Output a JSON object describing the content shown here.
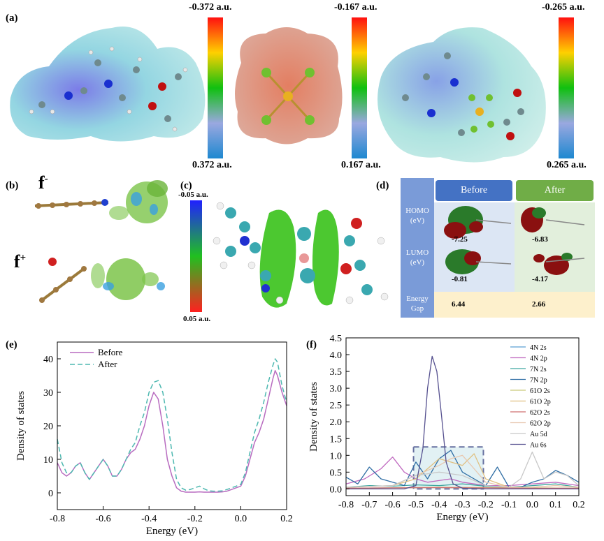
{
  "panel_labels": {
    "a": "(a)",
    "b": "(b)",
    "c": "(c)",
    "d": "(d)",
    "e": "(e)",
    "f": "(f)"
  },
  "panel_a": {
    "colorbars": [
      {
        "top": "-0.372 a.u.",
        "bottom": "0.372 a.u."
      },
      {
        "top": "-0.167 a.u.",
        "bottom": "0.167 a.u."
      },
      {
        "top": "-0.265 a.u.",
        "bottom": "0.265 a.u."
      }
    ]
  },
  "panel_b": {
    "f_minus": "f",
    "minus_sup": "-",
    "f_plus": "f",
    "plus_sup": "+"
  },
  "panel_c": {
    "colorbar_top": "-0.05 a.u.",
    "colorbar_bottom": "0.05 a.u."
  },
  "panel_d": {
    "col_before": "Before",
    "col_after": "After",
    "row_homo": "HOMO",
    "row_homo_unit": "(eV)",
    "row_lumo": "LUMO",
    "row_lumo_unit": "(eV)",
    "row_gap": "Energy",
    "row_gap2": "Gap",
    "homo_before": "-7.25",
    "homo_after": "-6.83",
    "lumo_before": "-0.81",
    "lumo_after": "-4.17",
    "gap_before": "6.44",
    "gap_after": "2.66"
  },
  "chart_data": [
    {
      "type": "line",
      "xlabel": "Energy (eV)",
      "ylabel": "Density of states",
      "xlim": [
        -0.8,
        0.2
      ],
      "ylim": [
        -5,
        45
      ],
      "xticks": [
        "-0.8",
        "-0.6",
        "-0.4",
        "-0.2",
        "0.0",
        "0.2"
      ],
      "yticks": [
        "0",
        "10",
        "20",
        "30",
        "40"
      ],
      "legend_position": "top-left",
      "series": [
        {
          "name": "Before",
          "color": "#b86cc0",
          "dash": "solid",
          "x": [
            -0.8,
            -0.78,
            -0.76,
            -0.74,
            -0.72,
            -0.7,
            -0.68,
            -0.66,
            -0.64,
            -0.62,
            -0.6,
            -0.58,
            -0.56,
            -0.54,
            -0.52,
            -0.5,
            -0.48,
            -0.46,
            -0.44,
            -0.42,
            -0.4,
            -0.38,
            -0.36,
            -0.34,
            -0.32,
            -0.3,
            -0.28,
            -0.26,
            -0.24,
            -0.22,
            -0.2,
            -0.18,
            -0.16,
            -0.14,
            -0.12,
            -0.1,
            -0.08,
            -0.06,
            -0.04,
            -0.02,
            0.0,
            0.02,
            0.04,
            0.06,
            0.08,
            0.1,
            0.12,
            0.14,
            0.15,
            0.16,
            0.18,
            0.2
          ],
          "y": [
            9,
            6,
            5,
            6,
            8,
            9,
            6,
            4,
            6,
            8,
            10,
            8,
            5,
            5,
            7,
            10,
            12,
            13,
            16,
            20,
            26,
            30,
            28,
            20,
            10,
            5,
            1.5,
            0.5,
            0.2,
            0.2,
            0.2,
            0.3,
            0.2,
            0.2,
            0.2,
            0.2,
            0.3,
            0.5,
            1,
            1.5,
            2,
            5,
            10,
            15,
            18,
            22,
            28,
            34,
            36.5,
            35,
            30,
            26
          ]
        },
        {
          "name": "After",
          "color": "#4db8b0",
          "dash": "dashed",
          "x": [
            -0.8,
            -0.78,
            -0.76,
            -0.74,
            -0.72,
            -0.7,
            -0.68,
            -0.66,
            -0.64,
            -0.62,
            -0.6,
            -0.58,
            -0.56,
            -0.54,
            -0.52,
            -0.5,
            -0.48,
            -0.46,
            -0.44,
            -0.42,
            -0.4,
            -0.38,
            -0.36,
            -0.34,
            -0.32,
            -0.3,
            -0.28,
            -0.26,
            -0.24,
            -0.22,
            -0.2,
            -0.18,
            -0.16,
            -0.14,
            -0.12,
            -0.1,
            -0.08,
            -0.06,
            -0.04,
            -0.02,
            0.0,
            0.02,
            0.04,
            0.06,
            0.08,
            0.1,
            0.12,
            0.14,
            0.15,
            0.16,
            0.18,
            0.2
          ],
          "y": [
            16,
            9,
            6,
            6,
            8,
            9,
            6,
            4,
            6,
            8,
            10,
            8,
            5,
            5,
            7,
            10,
            13,
            15,
            20,
            24,
            30,
            33,
            33.5,
            30,
            22,
            12,
            4,
            1.5,
            0.8,
            1,
            1.5,
            2,
            1.2,
            0.6,
            0.5,
            0.5,
            0.6,
            1,
            1.5,
            2,
            2.5,
            6,
            12,
            18,
            22,
            27,
            33,
            38,
            40,
            39,
            32,
            27
          ]
        }
      ]
    },
    {
      "type": "line",
      "xlabel": "Energy (eV)",
      "ylabel": "Density of states",
      "xlim": [
        -0.8,
        0.2
      ],
      "ylim": [
        -0.2,
        4.5
      ],
      "xticks": [
        "-0.8",
        "-0.7",
        "-0.6",
        "-0.5",
        "-0.4",
        "-0.3",
        "-0.2",
        "-0.1",
        "0.0",
        "0.1",
        "0.2"
      ],
      "yticks": [
        "0.0",
        "0.5",
        "1.0",
        "1.5",
        "2.0",
        "2.5",
        "3.0",
        "3.5",
        "4.0",
        "4.5"
      ],
      "legend_position": "top-right",
      "highlight_box": {
        "x0": -0.51,
        "x1": -0.21,
        "y0": 0.0,
        "y1": 1.25
      },
      "series": [
        {
          "name": "4N 2s",
          "color": "#5a9fd4",
          "x": [
            -0.8,
            -0.6,
            -0.4,
            -0.2,
            0.0,
            0.2
          ],
          "y": [
            0.02,
            0.03,
            0.05,
            0.03,
            0.02,
            0.02
          ]
        },
        {
          "name": "4N 2p",
          "color": "#c06ac0",
          "x": [
            -0.8,
            -0.72,
            -0.65,
            -0.6,
            -0.55,
            -0.5,
            -0.45,
            -0.4,
            -0.35,
            -0.3,
            -0.25,
            -0.2,
            -0.1,
            0.0,
            0.1,
            0.2
          ],
          "y": [
            0.15,
            0.3,
            0.6,
            0.95,
            0.5,
            0.3,
            0.2,
            0.25,
            0.3,
            0.2,
            0.15,
            0.1,
            0.1,
            0.15,
            0.2,
            0.1
          ]
        },
        {
          "name": "7N 2s",
          "color": "#3fa7a0",
          "x": [
            -0.8,
            -0.7,
            -0.6,
            -0.5,
            -0.4,
            -0.3,
            -0.2,
            -0.1,
            0.0,
            0.1,
            0.2
          ],
          "y": [
            0.05,
            0.1,
            0.08,
            0.12,
            0.1,
            0.15,
            0.08,
            0.05,
            0.1,
            0.15,
            0.05
          ]
        },
        {
          "name": "7N 2p",
          "color": "#2e6da4",
          "x": [
            -0.8,
            -0.75,
            -0.7,
            -0.65,
            -0.6,
            -0.55,
            -0.5,
            -0.45,
            -0.4,
            -0.35,
            -0.3,
            -0.25,
            -0.2,
            -0.15,
            -0.1,
            -0.05,
            0.0,
            0.05,
            0.1,
            0.15,
            0.2
          ],
          "y": [
            0.35,
            0.15,
            0.65,
            0.3,
            0.2,
            0.1,
            0.8,
            0.3,
            0.9,
            1.15,
            0.5,
            0.3,
            0.1,
            0.65,
            0.05,
            0.05,
            0.2,
            0.3,
            0.55,
            0.4,
            0.2
          ]
        },
        {
          "name": "61O 2s",
          "color": "#c9c97a",
          "x": [
            -0.8,
            -0.6,
            -0.4,
            -0.2,
            0.0,
            0.2
          ],
          "y": [
            0.02,
            0.03,
            0.05,
            0.04,
            0.03,
            0.02
          ]
        },
        {
          "name": "61O 2p",
          "color": "#e0c080",
          "x": [
            -0.8,
            -0.6,
            -0.5,
            -0.45,
            -0.4,
            -0.35,
            -0.3,
            -0.25,
            -0.2,
            -0.1,
            0.0,
            0.1,
            0.2
          ],
          "y": [
            0.05,
            0.1,
            0.3,
            0.6,
            0.9,
            0.8,
            0.7,
            1.05,
            0.3,
            0.05,
            0.05,
            0.1,
            0.05
          ]
        },
        {
          "name": "62O 2s",
          "color": "#d07070",
          "x": [
            -0.8,
            -0.6,
            -0.4,
            -0.2,
            0.0,
            0.2
          ],
          "y": [
            0.02,
            0.03,
            0.04,
            0.03,
            0.02,
            0.02
          ]
        },
        {
          "name": "62O 2p",
          "color": "#e8c8b0",
          "x": [
            -0.8,
            -0.6,
            -0.5,
            -0.4,
            -0.35,
            -0.3,
            -0.25,
            -0.2,
            -0.1,
            0.0,
            0.1,
            0.2
          ],
          "y": [
            0.05,
            0.1,
            0.4,
            0.7,
            0.9,
            1.0,
            0.6,
            0.2,
            0.05,
            0.05,
            0.1,
            0.05
          ]
        },
        {
          "name": "Au 5d",
          "color": "#c8c8c8",
          "x": [
            -0.8,
            -0.6,
            -0.5,
            -0.4,
            -0.3,
            -0.2,
            -0.1,
            -0.05,
            0.0,
            0.05,
            0.1,
            0.15,
            0.2
          ],
          "y": [
            0.05,
            0.1,
            0.4,
            0.5,
            0.4,
            0.1,
            0.05,
            0.3,
            1.1,
            0.3,
            0.5,
            0.4,
            0.1
          ]
        },
        {
          "name": "Au 6s",
          "color": "#55508f",
          "x": [
            -0.8,
            -0.55,
            -0.5,
            -0.47,
            -0.45,
            -0.43,
            -0.41,
            -0.39,
            -0.37,
            -0.34,
            -0.3,
            -0.2,
            0.2
          ],
          "y": [
            0.0,
            0.0,
            0.1,
            1.2,
            3.0,
            3.95,
            3.5,
            2.2,
            0.8,
            0.15,
            0.02,
            0.0,
            0.0
          ]
        }
      ]
    }
  ]
}
